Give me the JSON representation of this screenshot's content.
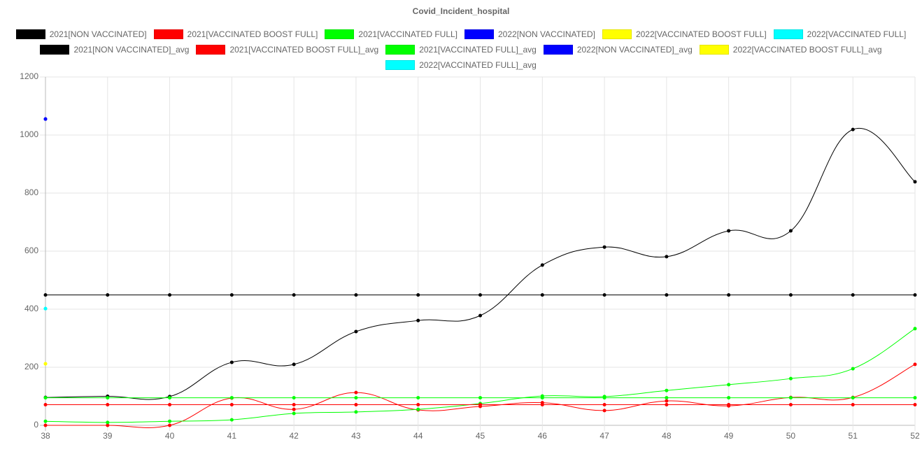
{
  "chart_data": {
    "type": "line",
    "title": "Covid_Incident_hospital",
    "x": [
      38,
      39,
      40,
      41,
      42,
      43,
      44,
      45,
      46,
      47,
      48,
      49,
      50,
      51,
      52
    ],
    "xlim": [
      38,
      52
    ],
    "xticks": [
      38,
      39,
      40,
      41,
      42,
      43,
      44,
      45,
      46,
      47,
      48,
      49,
      50,
      51,
      52
    ],
    "ylim": [
      0,
      1200
    ],
    "yticks": [
      0,
      200,
      400,
      600,
      800,
      1000,
      1200
    ],
    "grid": true,
    "series": [
      {
        "name": "2021[NON VACCINATED]",
        "color": "#000000",
        "values": [
          96,
          100,
          99,
          217,
          210,
          323,
          361,
          378,
          552,
          614,
          581,
          670,
          670,
          1019,
          839
        ]
      },
      {
        "name": "2021[VACCINATED BOOST FULL]",
        "color": "#ff0000",
        "values": [
          0,
          0,
          0,
          94,
          55,
          113,
          53,
          65,
          78,
          51,
          84,
          67,
          96,
          96,
          210
        ]
      },
      {
        "name": "2021[VACCINATED FULL]",
        "color": "#00ff00",
        "values": [
          14,
          10,
          14,
          19,
          41,
          46,
          55,
          75,
          101,
          99,
          120,
          140,
          161,
          195,
          333
        ]
      },
      {
        "name": "2022[NON VACCINATED]",
        "color": "#0000ff",
        "values": [
          1055,
          null,
          null,
          null,
          null,
          null,
          null,
          null,
          null,
          null,
          null,
          null,
          null,
          null,
          null
        ]
      },
      {
        "name": "2022[VACCINATED BOOST FULL]",
        "color": "#ffff00",
        "values": [
          212,
          null,
          null,
          null,
          null,
          null,
          null,
          null,
          null,
          null,
          null,
          null,
          null,
          null,
          null
        ]
      },
      {
        "name": "2022[VACCINATED FULL]",
        "color": "#00ffff",
        "values": [
          402,
          null,
          null,
          null,
          null,
          null,
          null,
          null,
          null,
          null,
          null,
          null,
          null,
          null,
          null
        ]
      },
      {
        "name": "2021[NON VACCINATED]_avg",
        "color": "#000000",
        "values": [
          449,
          449,
          449,
          449,
          449,
          449,
          449,
          449,
          449,
          449,
          449,
          449,
          449,
          449,
          449
        ]
      },
      {
        "name": "2021[VACCINATED BOOST FULL]_avg",
        "color": "#ff0000",
        "values": [
          71,
          71,
          71,
          71,
          71,
          71,
          71,
          71,
          71,
          71,
          71,
          71,
          71,
          71,
          71
        ]
      },
      {
        "name": "2021[VACCINATED FULL]_avg",
        "color": "#00ff00",
        "values": [
          95,
          95,
          95,
          95,
          95,
          95,
          95,
          95,
          95,
          95,
          95,
          95,
          95,
          95,
          95
        ]
      },
      {
        "name": "2022[NON VACCINATED]_avg",
        "color": "#0000ff",
        "values": [
          1055,
          null,
          null,
          null,
          null,
          null,
          null,
          null,
          null,
          null,
          null,
          null,
          null,
          null,
          null
        ]
      },
      {
        "name": "2022[VACCINATED BOOST FULL]_avg",
        "color": "#ffff00",
        "values": [
          212,
          null,
          null,
          null,
          null,
          null,
          null,
          null,
          null,
          null,
          null,
          null,
          null,
          null,
          null
        ]
      },
      {
        "name": "2022[VACCINATED FULL]_avg",
        "color": "#00ffff",
        "values": [
          402,
          null,
          null,
          null,
          null,
          null,
          null,
          null,
          null,
          null,
          null,
          null,
          null,
          null,
          null
        ]
      }
    ]
  }
}
